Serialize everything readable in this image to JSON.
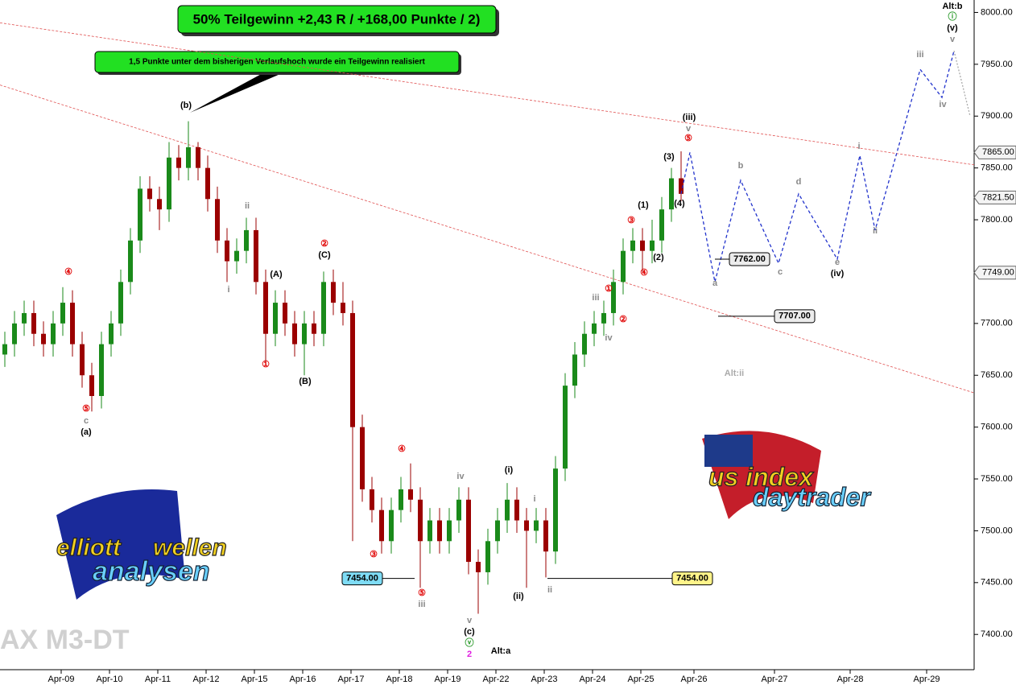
{
  "chart_data": {
    "type": "candlestick",
    "title": "50% Teilgewinn +2,43 R / +168,00 Punkte / 2)",
    "subtitle": "1,5 Punkte unter dem bisherigen Verlaufshoch wurde ein Teilgewinn realisiert",
    "watermark": "AX M3-DT",
    "categories": [
      "Apr-09",
      "Apr-10",
      "Apr-11",
      "Apr-12",
      "Apr-15",
      "Apr-16",
      "Apr-17",
      "Apr-18",
      "Apr-19",
      "Apr-22",
      "Apr-23",
      "Apr-24",
      "Apr-25",
      "Apr-26",
      "Apr-27",
      "Apr-28",
      "Apr-29"
    ],
    "up_color": "#1a8a1a",
    "down_color": "#9b0000",
    "open": [
      7670,
      7680,
      7700,
      7710,
      7690,
      7680,
      7700,
      7720,
      7680,
      7650,
      7630,
      7680,
      7700,
      7740,
      7780,
      7830,
      7820,
      7810,
      7860,
      7850,
      7870,
      7850,
      7820,
      7780,
      7760,
      7770,
      7790,
      7740,
      7690,
      7720,
      7700,
      7680,
      7700,
      7690,
      7740,
      7720,
      7710,
      7600,
      7540,
      7520,
      7490,
      7520,
      7540,
      7530,
      7490,
      7510,
      7490,
      7510,
      7530,
      7470,
      7460,
      7490,
      7510,
      7530,
      7510,
      7500,
      7510,
      7480,
      7560,
      7640,
      7670,
      7690,
      7700,
      7710,
      7740,
      7770,
      7780,
      7770,
      7780,
      7810,
      7840
    ],
    "high": [
      7692,
      7712,
      7722,
      7722,
      7702,
      7712,
      7735,
      7732,
      7692,
      7662,
      7692,
      7712,
      7752,
      7792,
      7842,
      7842,
      7832,
      7875,
      7872,
      7895,
      7875,
      7862,
      7832,
      7792,
      7782,
      7802,
      7802,
      7752,
      7732,
      7732,
      7712,
      7712,
      7712,
      7750,
      7752,
      7740,
      7722,
      7612,
      7552,
      7532,
      7532,
      7552,
      7565,
      7542,
      7522,
      7522,
      7522,
      7542,
      7542,
      7482,
      7502,
      7522,
      7546,
      7542,
      7522,
      7522,
      7522,
      7572,
      7652,
      7682,
      7702,
      7712,
      7722,
      7752,
      7782,
      7792,
      7792,
      7800,
      7822,
      7850,
      7866
    ],
    "low": [
      7658,
      7668,
      7688,
      7678,
      7668,
      7668,
      7688,
      7668,
      7638,
      7615,
      7618,
      7668,
      7688,
      7728,
      7768,
      7808,
      7790,
      7798,
      7838,
      7838,
      7838,
      7808,
      7768,
      7740,
      7748,
      7758,
      7728,
      7660,
      7678,
      7688,
      7668,
      7650,
      7678,
      7678,
      7708,
      7698,
      7490,
      7528,
      7508,
      7478,
      7478,
      7508,
      7518,
      7445,
      7478,
      7478,
      7478,
      7498,
      7458,
      7420,
      7448,
      7478,
      7498,
      7498,
      7445,
      7488,
      7455,
      7468,
      7548,
      7628,
      7658,
      7678,
      7688,
      7698,
      7728,
      7758,
      7750,
      7758,
      7768,
      7798,
      7818
    ],
    "close": [
      7680,
      7700,
      7710,
      7690,
      7680,
      7700,
      7720,
      7680,
      7650,
      7630,
      7680,
      7700,
      7740,
      7780,
      7830,
      7820,
      7810,
      7860,
      7850,
      7870,
      7850,
      7820,
      7780,
      7760,
      7770,
      7790,
      7740,
      7690,
      7720,
      7700,
      7680,
      7700,
      7690,
      7740,
      7720,
      7710,
      7600,
      7540,
      7520,
      7490,
      7520,
      7540,
      7530,
      7490,
      7510,
      7490,
      7510,
      7530,
      7470,
      7460,
      7490,
      7510,
      7530,
      7510,
      7500,
      7510,
      7480,
      7560,
      7640,
      7670,
      7690,
      7700,
      7710,
      7740,
      7770,
      7780,
      7770,
      7780,
      7810,
      7840,
      7825
    ],
    "ylim": [
      7366,
      8012
    ],
    "yticks": [
      {
        "value": 7400,
        "label": "7400.00"
      },
      {
        "value": 7450,
        "label": "7450.00"
      },
      {
        "value": 7500,
        "label": "7500.00"
      },
      {
        "value": 7550,
        "label": "7550.00"
      },
      {
        "value": 7600,
        "label": "7600.00"
      },
      {
        "value": 7650,
        "label": "7650.00"
      },
      {
        "value": 7700,
        "label": "7700.00"
      },
      {
        "value": 7750,
        "label": "7750.00"
      },
      {
        "value": 7800,
        "label": "7800.00"
      },
      {
        "value": 7850,
        "label": "7850.00"
      },
      {
        "value": 7900,
        "label": "7900.00"
      },
      {
        "value": 7950,
        "label": "7950.00"
      },
      {
        "value": 8000,
        "label": "8000.00"
      }
    ],
    "trendlines": [
      {
        "color": "#e05050",
        "values": [
          7990,
          7853
        ]
      },
      {
        "color": "#e05050",
        "values": [
          7930,
          7633
        ]
      }
    ],
    "projection": {
      "color": "#2233cc",
      "values": [
        7825,
        7865,
        7740,
        7838,
        7758,
        7825,
        7762,
        7862,
        7790,
        7945,
        7918,
        7963
      ]
    },
    "projection_tail": {
      "color": "#aaaaaa",
      "values": [
        7963,
        7900
      ]
    },
    "levels": [
      {
        "value": 7762,
        "label": "7762.00",
        "color": "#ececec"
      },
      {
        "value": 7707,
        "label": "7707.00",
        "color": "#ececec"
      },
      {
        "value": 7454,
        "label": "7454.00",
        "color": "#7fdcf5"
      },
      {
        "value": 7454,
        "label": "7454.00",
        "color": "#fff48a"
      }
    ],
    "price_tags": [
      {
        "value": 7865,
        "label": "7865.00"
      },
      {
        "value": 7821.5,
        "label": "7821.50"
      },
      {
        "value": 7749,
        "label": "7749.00"
      }
    ],
    "annotations": [
      "④",
      "⑤",
      "c",
      "(a)",
      "(b)",
      "ii",
      "i",
      "(A)",
      "②",
      "(C)",
      "①",
      "(B)",
      "④",
      "③",
      "⑤",
      "iii",
      "iv",
      "v",
      "(c)",
      "ⓥ",
      "2",
      "Alt:a",
      "(i)",
      "i",
      "(ii)",
      "ii",
      "iii",
      "①",
      "②",
      "iv",
      "③",
      "④",
      "(1)",
      "(2)",
      "(3)",
      "(4)",
      "⑤",
      "v",
      "(iii)",
      "a",
      "b",
      "c",
      "d",
      "e",
      "(iv)",
      "i",
      "ii",
      "iii",
      "iv",
      "v",
      "(v)",
      "ⓘ",
      "Alt:b",
      "Alt:ii"
    ],
    "logos": [
      {
        "lines": [
          "elliott",
          "wellen",
          "analysen"
        ]
      },
      {
        "lines": [
          "us index",
          "daytrader"
        ]
      }
    ]
  }
}
